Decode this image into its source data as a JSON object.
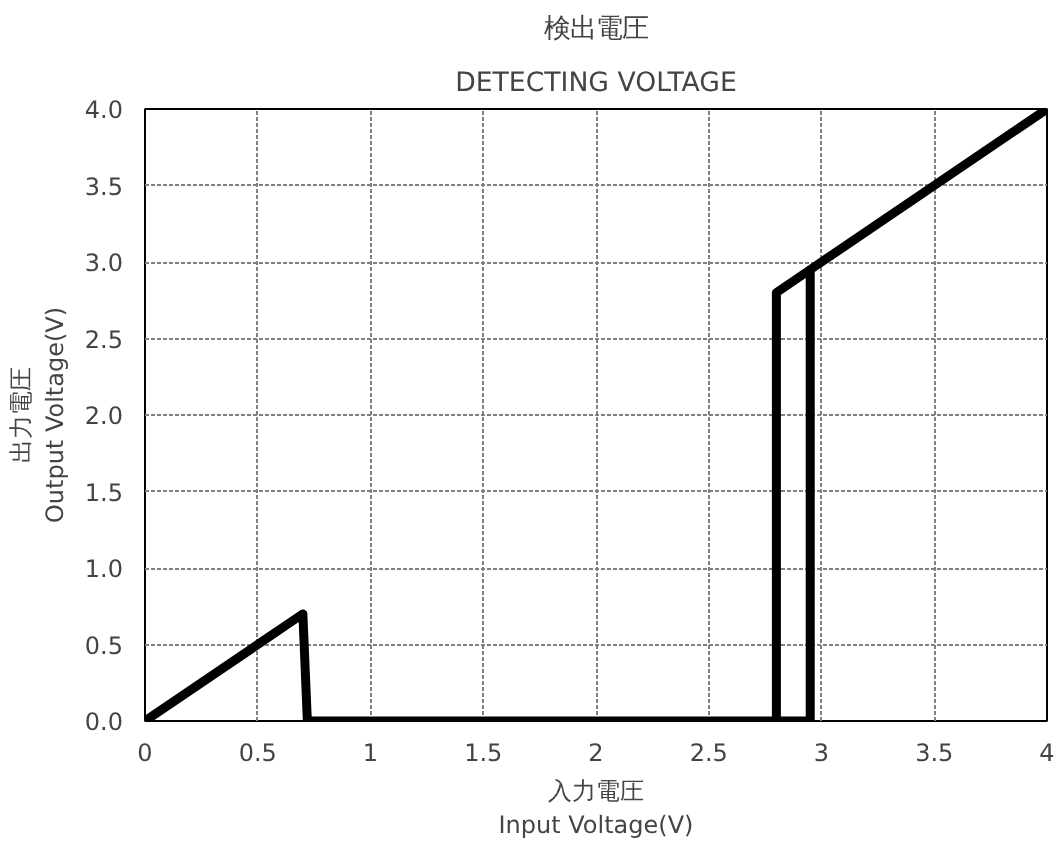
{
  "chart_data": {
    "type": "line",
    "title": "検出電圧",
    "subtitle": "DETECTING VOLTAGE",
    "xlabel": "入力電圧\nInput Voltage(V)",
    "ylabel": "出力電圧\nOutput Voltage(V)",
    "xlim": [
      0,
      4
    ],
    "xticks": [
      0,
      0.5,
      1,
      1.5,
      2,
      2.5,
      3,
      3.5,
      4
    ],
    "ylim": [
      0,
      4
    ],
    "yticks": [
      {
        "value": 0,
        "label": "0.0"
      },
      {
        "value": 0.5,
        "label": "0.5"
      },
      {
        "value": 1,
        "label": "1.0"
      },
      {
        "value": 1.5,
        "label": "1.5"
      },
      {
        "value": 2,
        "label": "2.0"
      },
      {
        "value": 2.5,
        "label": "2.5"
      },
      {
        "value": 3,
        "label": "3.0"
      },
      {
        "value": 3.5,
        "label": "3.5"
      },
      {
        "value": 4,
        "label": "4.0"
      }
    ],
    "grid": true,
    "line_style": "solid",
    "marker": "none",
    "series": [
      {
        "color": "#000000",
        "x": [
          0,
          0.7,
          0.72,
          2.95,
          2.95,
          4
        ],
        "values": [
          0,
          0.7,
          0,
          0,
          2.95,
          4
        ]
      },
      {
        "color": "#000000",
        "x": [
          2.8,
          2.8,
          2.95
        ],
        "values": [
          0,
          2.8,
          2.95
        ]
      }
    ]
  }
}
